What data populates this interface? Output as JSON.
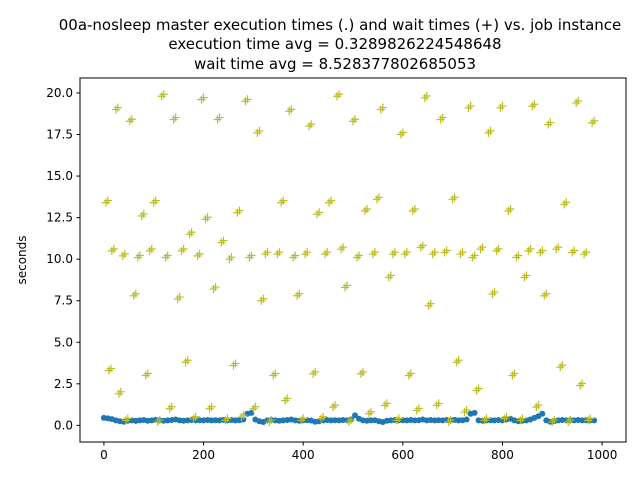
{
  "chart_data": {
    "type": "scatter",
    "title": {
      "line1": "00a-nosleep master execution times (.) and wait times (+) vs. job instance",
      "line2": "execution time avg = 0.3289826224548648",
      "line3": "wait time avg = 8.528377802685053"
    },
    "xlabel": "",
    "ylabel": "seconds",
    "xlim": [
      -48,
      1048
    ],
    "ylim": [
      -1.0,
      20.9
    ],
    "xticks": [
      0,
      200,
      400,
      600,
      800,
      1000
    ],
    "yticks": [
      0.0,
      2.5,
      5.0,
      7.5,
      10.0,
      12.5,
      15.0,
      17.5,
      20.0
    ],
    "ytick_labels": [
      "0.0",
      "2.5",
      "5.0",
      "7.5",
      "10.0",
      "12.5",
      "15.0",
      "17.5",
      "20.0"
    ],
    "grid": false,
    "legend": "none",
    "colors": {
      "execution": "#1f77b4",
      "wait": "#bcbd22"
    },
    "series": [
      {
        "marker": "dot",
        "x": [
          0,
          8,
          16,
          24,
          32,
          40,
          48,
          56,
          64,
          72,
          80,
          88,
          96,
          104,
          112,
          120,
          128,
          136,
          144,
          152,
          160,
          168,
          176,
          184,
          192,
          200,
          208,
          216,
          224,
          232,
          240,
          248,
          256,
          264,
          272,
          280,
          288,
          296,
          304,
          312,
          320,
          328,
          336,
          344,
          352,
          360,
          368,
          376,
          384,
          392,
          400,
          408,
          416,
          424,
          432,
          440,
          448,
          456,
          464,
          472,
          480,
          488,
          496,
          504,
          512,
          520,
          528,
          536,
          544,
          552,
          560,
          568,
          576,
          584,
          592,
          600,
          608,
          616,
          624,
          632,
          640,
          648,
          656,
          664,
          672,
          680,
          688,
          696,
          704,
          712,
          720,
          728,
          736,
          744,
          752,
          760,
          768,
          776,
          784,
          792,
          800,
          808,
          816,
          824,
          832,
          840,
          848,
          856,
          864,
          872,
          880,
          888,
          896,
          904,
          912,
          920,
          928,
          936,
          944,
          952,
          960,
          968,
          976,
          984
        ],
        "y": [
          0.45,
          0.42,
          0.38,
          0.3,
          0.25,
          0.22,
          0.28,
          0.3,
          0.27,
          0.3,
          0.32,
          0.28,
          0.3,
          0.33,
          0.3,
          0.28,
          0.3,
          0.32,
          0.35,
          0.3,
          0.28,
          0.3,
          0.32,
          0.3,
          0.31,
          0.3,
          0.32,
          0.3,
          0.31,
          0.3,
          0.33,
          0.3,
          0.32,
          0.3,
          0.31,
          0.35,
          0.7,
          0.75,
          0.35,
          0.25,
          0.2,
          0.3,
          0.32,
          0.3,
          0.28,
          0.3,
          0.32,
          0.35,
          0.3,
          0.28,
          0.3,
          0.31,
          0.29,
          0.22,
          0.25,
          0.3,
          0.32,
          0.3,
          0.31,
          0.3,
          0.32,
          0.3,
          0.35,
          0.6,
          0.4,
          0.3,
          0.28,
          0.3,
          0.31,
          0.25,
          0.2,
          0.28,
          0.3,
          0.32,
          0.3,
          0.31,
          0.3,
          0.32,
          0.3,
          0.31,
          0.35,
          0.3,
          0.32,
          0.3,
          0.31,
          0.3,
          0.32,
          0.3,
          0.33,
          0.3,
          0.31,
          0.35,
          0.7,
          0.75,
          0.3,
          0.28,
          0.3,
          0.31,
          0.3,
          0.32,
          0.3,
          0.35,
          0.4,
          0.3,
          0.25,
          0.28,
          0.3,
          0.35,
          0.45,
          0.55,
          0.7,
          0.3,
          0.22,
          0.25,
          0.3,
          0.32,
          0.3,
          0.31,
          0.3,
          0.32,
          0.3,
          0.31,
          0.3,
          0.3
        ]
      },
      {
        "marker": "plus",
        "x": [
          4,
          10,
          16,
          24,
          30,
          38,
          44,
          52,
          60,
          68,
          76,
          84,
          92,
          100,
          108,
          116,
          124,
          132,
          140,
          148,
          156,
          164,
          172,
          180,
          188,
          196,
          204,
          212,
          220,
          228,
          236,
          244,
          252,
          260,
          268,
          276,
          284,
          292,
          300,
          308,
          316,
          324,
          332,
          340,
          348,
          356,
          364,
          372,
          380,
          388,
          396,
          404,
          412,
          420,
          428,
          436,
          444,
          452,
          460,
          468,
          476,
          484,
          492,
          500,
          508,
          516,
          524,
          532,
          540,
          548,
          556,
          564,
          572,
          580,
          588,
          596,
          604,
          612,
          620,
          628,
          636,
          644,
          652,
          660,
          668,
          676,
          684,
          692,
          700,
          708,
          716,
          724,
          732,
          740,
          748,
          756,
          764,
          772,
          780,
          788,
          796,
          804,
          812,
          820,
          828,
          836,
          844,
          852,
          860,
          868,
          876,
          884,
          892,
          900,
          908,
          916,
          924,
          932,
          940,
          948,
          956,
          964,
          972,
          980
        ],
        "y": [
          13.4,
          3.3,
          10.5,
          19.0,
          1.9,
          10.2,
          0.3,
          18.3,
          7.8,
          10.1,
          12.6,
          3.0,
          10.5,
          13.4,
          0.2,
          19.8,
          10.1,
          1.0,
          18.4,
          7.6,
          10.5,
          3.8,
          11.5,
          0.4,
          10.2,
          19.6,
          12.4,
          1.0,
          8.2,
          18.4,
          11.0,
          0.3,
          10.0,
          3.6,
          12.8,
          0.5,
          19.5,
          10.1,
          1.0,
          17.6,
          7.5,
          10.3,
          0.2,
          3.0,
          10.3,
          13.4,
          1.5,
          18.9,
          10.1,
          7.8,
          0.3,
          10.3,
          18.0,
          3.1,
          12.7,
          0.4,
          10.3,
          13.4,
          1.1,
          19.8,
          10.6,
          8.3,
          0.2,
          18.3,
          10.1,
          3.1,
          12.9,
          0.7,
          10.3,
          13.6,
          19.0,
          1.2,
          8.9,
          10.3,
          0.3,
          17.5,
          10.3,
          3.0,
          12.9,
          0.9,
          10.7,
          19.7,
          7.2,
          10.3,
          1.2,
          18.4,
          10.4,
          0.2,
          13.6,
          3.8,
          10.3,
          0.8,
          19.1,
          10.1,
          2.1,
          10.6,
          0.3,
          17.6,
          7.9,
          10.5,
          19.1,
          0.4,
          12.9,
          3.0,
          10.1,
          0.3,
          8.9,
          10.5,
          19.2,
          1.1,
          10.4,
          7.8,
          18.1,
          0.2,
          10.6,
          3.5,
          13.3,
          0.2,
          10.4,
          19.4,
          2.4,
          10.3,
          0.3,
          18.2
        ]
      }
    ]
  }
}
